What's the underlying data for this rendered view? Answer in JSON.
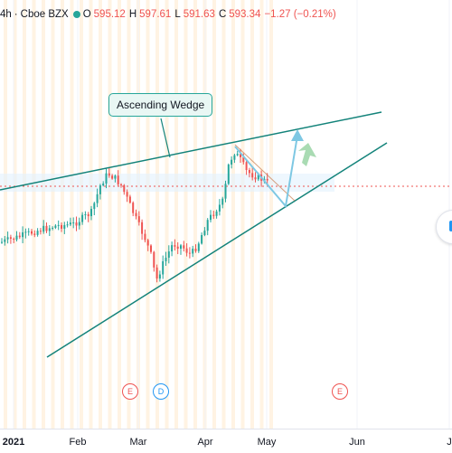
{
  "legend": {
    "timeframe": "4h",
    "exchange": "Cboe BZX",
    "open_label": "O",
    "open": "595.12",
    "high_label": "H",
    "high": "597.61",
    "low_label": "L",
    "low": "591.63",
    "close_label": "C",
    "close": "593.34",
    "change": "−1.27 (−0.21%)"
  },
  "annotation": {
    "label": "Ascending Wedge"
  },
  "event_markers": [
    "E",
    "D",
    "E"
  ],
  "x_axis": {
    "ticks": [
      "2021",
      "Feb",
      "Mar",
      "Apr",
      "May",
      "Jun",
      "J"
    ]
  },
  "colors": {
    "up": "#26a69a",
    "down": "#ef5350",
    "trendline": "#13837a",
    "projection": "#7ec8e3",
    "highlight": "#ffe9cc"
  },
  "chart_data": {
    "type": "candlestick",
    "current_price": 593.34
  }
}
